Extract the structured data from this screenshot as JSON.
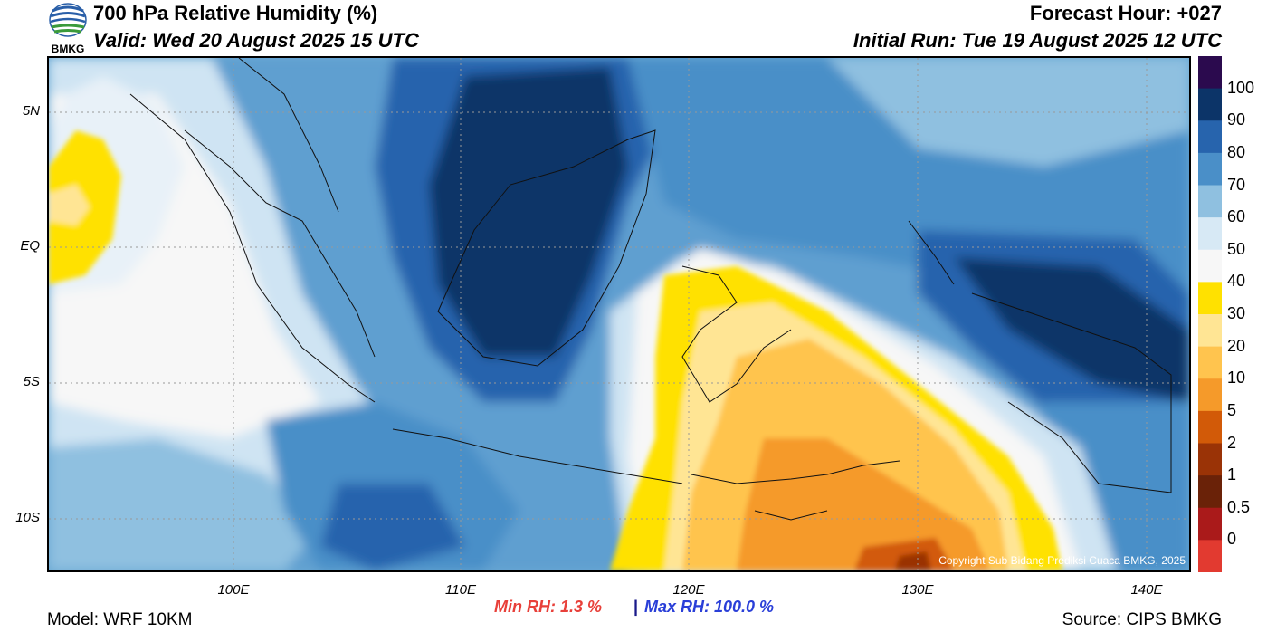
{
  "header": {
    "title": "700 hPa Relative Humidity (%)",
    "valid": "Valid: Wed 20 August 2025 15 UTC",
    "forecast_hour": "Forecast Hour: +027",
    "initial_run": "Initial Run: Tue 19 August 2025 12 UTC"
  },
  "logo": {
    "text": "BMKG"
  },
  "axes": {
    "lat_labels": [
      "5N",
      "EQ",
      "5S",
      "10S"
    ],
    "lon_labels": [
      "100E",
      "110E",
      "120E",
      "130E",
      "140E"
    ]
  },
  "colorbar": {
    "labels": [
      "100",
      "90",
      "80",
      "70",
      "60",
      "50",
      "40",
      "30",
      "20",
      "10",
      "5",
      "2",
      "1",
      "0.5",
      "0"
    ],
    "colors": [
      "#2b0a4e",
      "#0c3468",
      "#2764ad",
      "#4a8fc8",
      "#8fc0e0",
      "#d7e9f5",
      "#f7f7f7",
      "#ffe100",
      "#ffe594",
      "#ffc44e",
      "#f59a2a",
      "#d25a08",
      "#9a3306",
      "#6a2208",
      "#aa1a1a",
      "#e23a30"
    ]
  },
  "map": {
    "copyright": "Copyright Sub Bidang Prediksi Cuaca BMKG, 2025"
  },
  "stats": {
    "min_label": "Min RH:   1.3 %",
    "sep": "|",
    "max_label": "Max RH: 100.0 %"
  },
  "footer": {
    "model": "Model: WRF 10KM",
    "source": "Source: CIPS BMKG"
  }
}
